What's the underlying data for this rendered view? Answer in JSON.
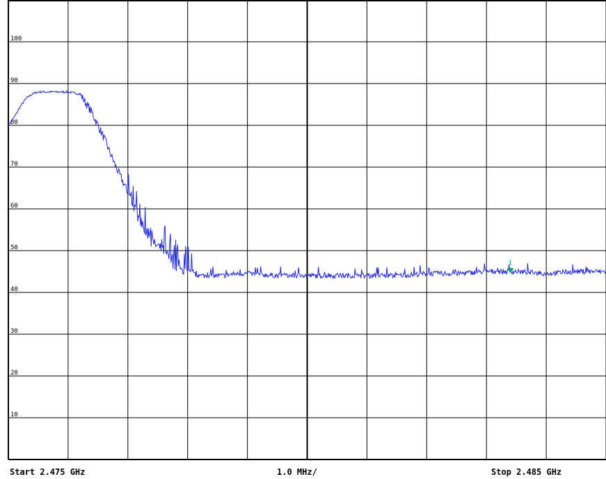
{
  "chart_data": {
    "type": "line",
    "title": "",
    "xlabel": "",
    "ylabel": "",
    "xlim": [
      2.475,
      2.485
    ],
    "ylim": [
      0,
      110
    ],
    "x_divisions": 10,
    "x_unit": "GHz",
    "y_ticks": [
      100,
      90,
      80,
      70,
      60,
      50,
      40,
      30,
      20,
      10
    ],
    "y_tick_labels": [
      "100",
      "90",
      "80",
      "70",
      "60",
      "50",
      "40",
      "30",
      "20",
      "10"
    ],
    "grid": true,
    "legend": "none",
    "footer": {
      "start": "Start 2.475 GHz",
      "span": "1.0 MHz/",
      "stop": "Stop 2.485 GHz"
    },
    "series": [
      {
        "color": "#1f28d8",
        "x": [
          2.475,
          2.4751,
          2.4752,
          2.4753,
          2.4754,
          2.4755,
          2.4756,
          2.4758,
          2.476,
          2.4762,
          2.4764,
          2.4766,
          2.4768,
          2.477,
          2.4772,
          2.4774,
          2.4776,
          2.4778,
          2.478,
          2.4782,
          2.4784,
          2.4786,
          2.4788,
          2.479,
          2.4795,
          2.48,
          2.4805,
          2.481,
          2.4815,
          2.482,
          2.4825,
          2.483,
          2.4835,
          2.484,
          2.4845,
          2.485
        ],
        "values": [
          80,
          82,
          84.5,
          86.5,
          87.5,
          88,
          88,
          88,
          88,
          87.5,
          83,
          77,
          70,
          64,
          57,
          52,
          50,
          46,
          44.5,
          44,
          44,
          44,
          44.5,
          44.5,
          44,
          44,
          44,
          44,
          44,
          44.5,
          44.5,
          45,
          45,
          44.5,
          45,
          45
        ]
      }
    ],
    "marker": {
      "label": "1",
      "x": 2.4834,
      "y": 45.3,
      "color": "#009999"
    }
  }
}
